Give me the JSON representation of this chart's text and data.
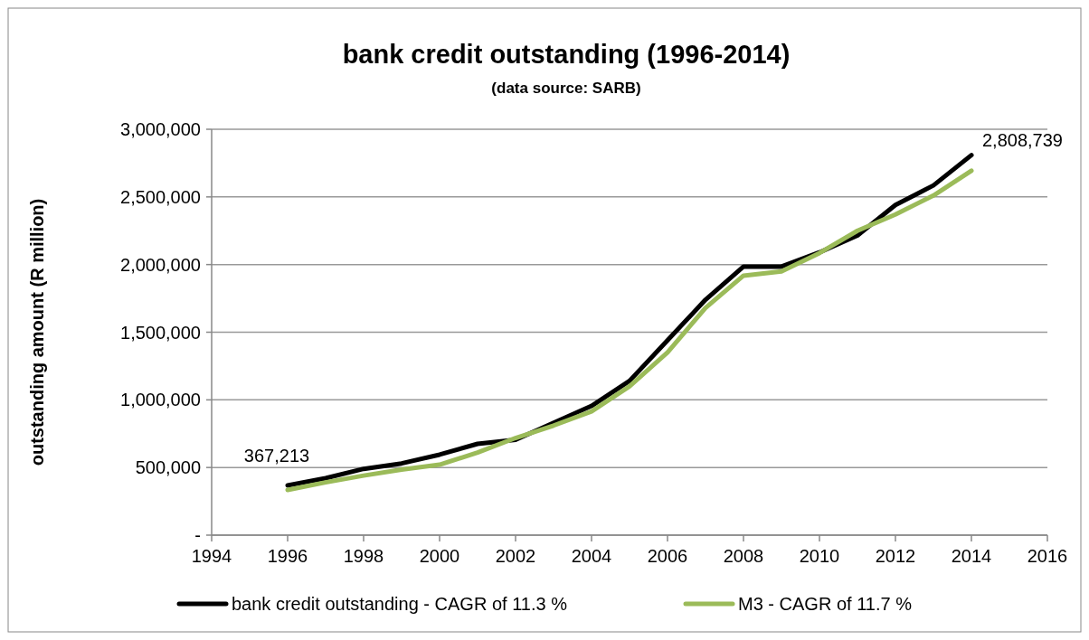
{
  "chart_data": {
    "type": "line",
    "title": "bank credit outstanding (1996-2014)",
    "subtitle": "(data source: SARB)",
    "ylabel": "outstanding amount (R million)",
    "x": [
      1996,
      1997,
      1998,
      1999,
      2000,
      2001,
      2002,
      2003,
      2004,
      2005,
      2006,
      2007,
      2008,
      2009,
      2010,
      2011,
      2012,
      2013,
      2014
    ],
    "series": [
      {
        "name": "bank credit outstanding - CAGR of 11.3 %",
        "color": "#000000",
        "values": [
          367213,
          421000,
          490000,
          530000,
          595000,
          675000,
          705000,
          830000,
          955000,
          1140000,
          1440000,
          1740000,
          1985000,
          1985000,
          2090000,
          2215000,
          2440000,
          2585000,
          2808739
        ]
      },
      {
        "name": "M3 - CAGR of 11.7 %",
        "color": "#9bbb59",
        "values": [
          334000,
          390000,
          440000,
          485000,
          521000,
          610000,
          718000,
          810000,
          915000,
          1100000,
          1350000,
          1680000,
          1918000,
          1950000,
          2085000,
          2250000,
          2370000,
          2510000,
          2693000
        ]
      }
    ],
    "annotations": [
      {
        "text": "367,213",
        "x": 1996,
        "y": 367213
      },
      {
        "text": "2,808,739",
        "x": 2014,
        "y": 2808739
      }
    ],
    "xlim": [
      1994,
      2016
    ],
    "xticks": [
      1994,
      1996,
      1998,
      2000,
      2002,
      2004,
      2006,
      2008,
      2010,
      2012,
      2014,
      2016
    ],
    "ylim": [
      0,
      3000000
    ],
    "yticks": [
      {
        "value": 0,
        "label": "-"
      },
      {
        "value": 500000,
        "label": "500,000"
      },
      {
        "value": 1000000,
        "label": "1,000,000"
      },
      {
        "value": 1500000,
        "label": "1,500,000"
      },
      {
        "value": 2000000,
        "label": "2,000,000"
      },
      {
        "value": 2500000,
        "label": "2,500,000"
      },
      {
        "value": 3000000,
        "label": "3,000,000"
      }
    ],
    "grid": "y",
    "legend": "bottom",
    "marker": "none",
    "line_style": "solid"
  }
}
